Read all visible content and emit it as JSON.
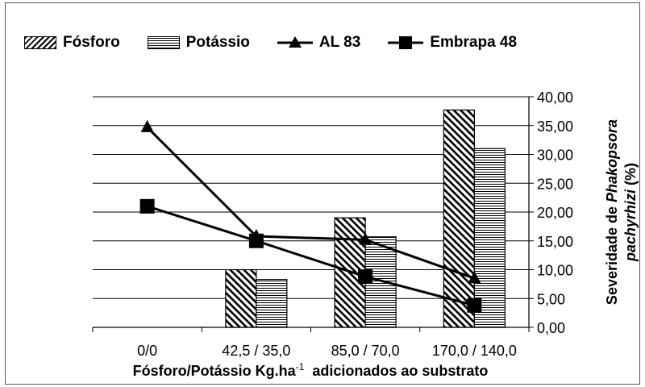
{
  "chart_data": {
    "type": "bar",
    "categories": [
      "0/0",
      "42,5 / 35,0",
      "85,0 / 70,0",
      "170,0 / 140,0"
    ],
    "series": [
      {
        "name": "Fósforo",
        "kind": "bar",
        "pattern": "diagonal-hatch",
        "values": [
          0,
          10,
          19,
          37.7
        ]
      },
      {
        "name": "Potássio",
        "kind": "bar",
        "pattern": "horizontal-stripes",
        "values": [
          0,
          8.3,
          15.7,
          31
        ]
      },
      {
        "name": "AL 83",
        "kind": "line",
        "marker": "triangle",
        "values": [
          34.7,
          15.8,
          15.2,
          8.5
        ]
      },
      {
        "name": "Embrapa 48",
        "kind": "line",
        "marker": "square",
        "values": [
          21,
          15,
          8.8,
          3.8
        ]
      }
    ],
    "xlabel_main": "Fósforo/Potássio Kg.ha",
    "xlabel_sup": "-1",
    "xlabel_rest": "adicionados ao substrato",
    "ylabel_line1_prefix": "Severidade de ",
    "ylabel_line1_italic": "Phakopsora",
    "ylabel_line2_italic": "pachyrhizi",
    "ylabel_line2_suffix": " (%)",
    "yticks": [
      "0,00",
      "5,00",
      "10,00",
      "15,00",
      "20,00",
      "25,00",
      "30,00",
      "35,00",
      "40,00"
    ],
    "ylim": [
      0,
      40
    ],
    "y_axis_side": "right",
    "grid": true,
    "legend_position": "top"
  }
}
